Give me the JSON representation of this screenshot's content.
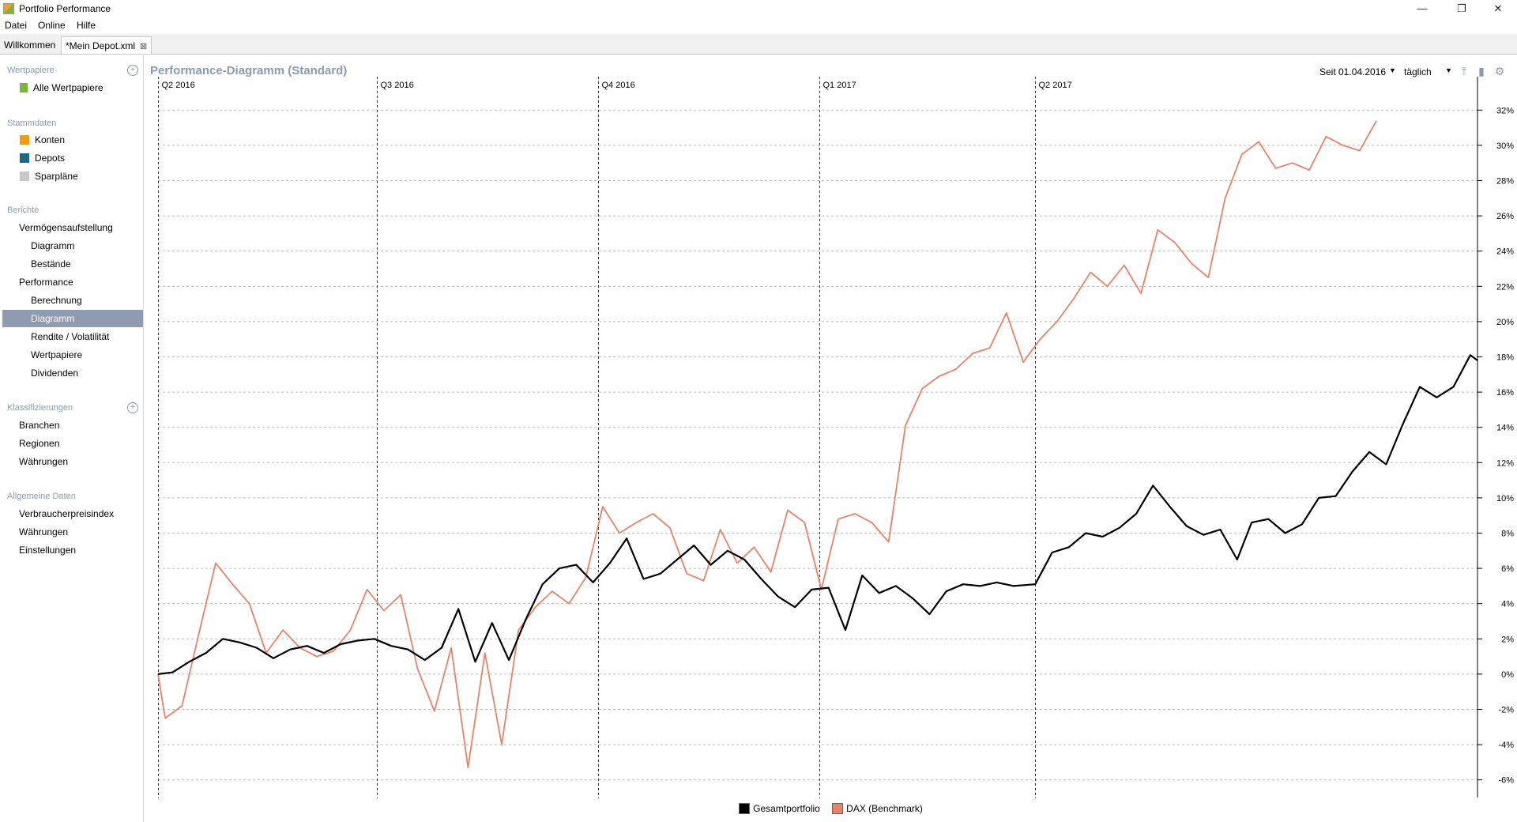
{
  "app": {
    "title": "Portfolio Performance",
    "win_min": "—",
    "win_restore": "❐",
    "win_close": "✕"
  },
  "menu": [
    "Datei",
    "Online",
    "Hilfe"
  ],
  "tabs": [
    {
      "label": "Willkommen"
    },
    {
      "label": "*Mein Depot.xml",
      "close": "⊠"
    }
  ],
  "sidebar": {
    "wertpapiere": {
      "header": "Wertpapiere",
      "items": [
        "Alle Wertpapiere"
      ]
    },
    "stammdaten": {
      "header": "Stammdaten",
      "items": [
        "Konten",
        "Depots",
        "Sparpläne"
      ],
      "colors": [
        "#f39c12",
        "#1f6a80",
        "#c8c8c8"
      ]
    },
    "berichte": {
      "header": "Berichte",
      "items": [
        "Vermögensaufstellung",
        "Diagramm",
        "Bestände",
        "Performance",
        "Berechnung",
        "Diagramm",
        "Rendite / Volatilität",
        "Wertpapiere",
        "Dividenden"
      ]
    },
    "klassifizierungen": {
      "header": "Klassifizierungen",
      "items": [
        "Branchen",
        "Regionen",
        "Währungen"
      ]
    },
    "allgemein": {
      "header": "Allgemeine Daten",
      "items": [
        "Verbraucherpreisindex",
        "Währungen",
        "Einstellungen"
      ]
    },
    "add_icon": "+"
  },
  "toolbar": {
    "title": "Performance-Diagramm (Standard)",
    "period": "Seit 01.04.2016",
    "interval": "täglich",
    "dropdown": "▼",
    "icons": [
      "export-icon",
      "bookmark-icon",
      "settings-icon"
    ]
  },
  "chart_data": {
    "type": "line",
    "quarters": [
      "Q2 2016",
      "Q3 2016",
      "Q4 2016",
      "Q1 2017",
      "Q2 2017"
    ],
    "y_ticks": [
      "32%",
      "30%",
      "28%",
      "26%",
      "24%",
      "22%",
      "20%",
      "18%",
      "16%",
      "14%",
      "12%",
      "10%",
      "8%",
      "6%",
      "4%",
      "2%",
      "0%",
      "-2%",
      "-4%",
      "-6%"
    ],
    "ylim": [
      -7,
      33
    ],
    "x_start": "2016-04-01",
    "grid": true,
    "legend_position": "bottom",
    "series": [
      {
        "name": "Gesamtportfolio",
        "color": "#000000",
        "points": [
          [
            "2016-04-01",
            0
          ],
          [
            "2016-04-07",
            0.1
          ],
          [
            "2016-04-14",
            0.7
          ],
          [
            "2016-04-21",
            1.2
          ],
          [
            "2016-04-28",
            2.0
          ],
          [
            "2016-05-05",
            1.8
          ],
          [
            "2016-05-12",
            1.5
          ],
          [
            "2016-05-19",
            0.9
          ],
          [
            "2016-05-26",
            1.4
          ],
          [
            "2016-06-02",
            1.6
          ],
          [
            "2016-06-09",
            1.2
          ],
          [
            "2016-06-16",
            1.7
          ],
          [
            "2016-06-23",
            1.9
          ],
          [
            "2016-06-30",
            2.0
          ],
          [
            "2016-07-07",
            1.6
          ],
          [
            "2016-07-14",
            1.4
          ],
          [
            "2016-07-21",
            0.8
          ],
          [
            "2016-07-28",
            1.5
          ],
          [
            "2016-08-04",
            3.7
          ],
          [
            "2016-08-11",
            0.7
          ],
          [
            "2016-08-18",
            2.9
          ],
          [
            "2016-08-25",
            0.8
          ],
          [
            "2016-09-01",
            3.1
          ],
          [
            "2016-09-08",
            5.1
          ],
          [
            "2016-09-15",
            6.0
          ],
          [
            "2016-09-22",
            6.2
          ],
          [
            "2016-09-29",
            5.2
          ],
          [
            "2016-10-06",
            6.3
          ],
          [
            "2016-10-13",
            7.7
          ],
          [
            "2016-10-20",
            5.4
          ],
          [
            "2016-10-27",
            5.7
          ],
          [
            "2016-11-03",
            6.5
          ],
          [
            "2016-11-10",
            7.3
          ],
          [
            "2016-11-17",
            6.2
          ],
          [
            "2016-11-24",
            7.0
          ],
          [
            "2016-12-01",
            6.5
          ],
          [
            "2016-12-08",
            5.4
          ],
          [
            "2016-12-15",
            4.4
          ],
          [
            "2016-12-22",
            3.8
          ],
          [
            "2016-12-29",
            4.8
          ],
          [
            "2017-01-05",
            4.9
          ],
          [
            "2017-01-12",
            2.5
          ],
          [
            "2017-01-19",
            5.6
          ],
          [
            "2017-01-26",
            4.6
          ],
          [
            "2017-02-02",
            5.0
          ],
          [
            "2017-02-09",
            4.3
          ],
          [
            "2017-02-16",
            3.4
          ],
          [
            "2017-02-23",
            4.7
          ],
          [
            "2017-03-02",
            5.1
          ],
          [
            "2017-03-09",
            5.0
          ],
          [
            "2017-03-16",
            5.2
          ],
          [
            "2017-03-23",
            5.0
          ],
          [
            "2017-04-01",
            5.1
          ],
          [
            "2017-04-08",
            6.9
          ],
          [
            "2017-04-15",
            7.2
          ],
          [
            "2017-04-22",
            8.0
          ],
          [
            "2017-04-29",
            7.8
          ],
          [
            "2017-05-06",
            8.3
          ],
          [
            "2017-05-13",
            9.1
          ],
          [
            "2017-05-20",
            10.7
          ],
          [
            "2017-05-27",
            9.5
          ],
          [
            "2017-06-03",
            8.4
          ],
          [
            "2017-06-10",
            7.9
          ],
          [
            "2017-06-17",
            8.2
          ],
          [
            "2017-06-24",
            6.5
          ],
          [
            "2017-06-30",
            8.6
          ],
          [
            "2017-07-07",
            8.8
          ],
          [
            "2017-07-14",
            8.0
          ],
          [
            "2017-07-21",
            8.5
          ],
          [
            "2017-07-28",
            10.0
          ],
          [
            "2017-08-04",
            10.1
          ],
          [
            "2017-08-11",
            11.5
          ],
          [
            "2017-08-18",
            12.6
          ],
          [
            "2017-08-25",
            11.9
          ],
          [
            "2017-09-01",
            14.2
          ],
          [
            "2017-09-08",
            16.3
          ],
          [
            "2017-09-15",
            15.7
          ],
          [
            "2017-09-22",
            16.3
          ],
          [
            "2017-09-29",
            18.1
          ],
          [
            "2017-10-02",
            17.8
          ]
        ]
      },
      {
        "name": "DAX (Benchmark)",
        "color": "#e8826a",
        "points": [
          [
            "2016-04-01",
            0
          ],
          [
            "2016-04-04",
            -2.5
          ],
          [
            "2016-04-11",
            -1.8
          ],
          [
            "2016-04-18",
            2.3
          ],
          [
            "2016-04-25",
            6.3
          ],
          [
            "2016-05-02",
            5.1
          ],
          [
            "2016-05-09",
            4.0
          ],
          [
            "2016-05-16",
            1.2
          ],
          [
            "2016-05-23",
            2.5
          ],
          [
            "2016-05-30",
            1.5
          ],
          [
            "2016-06-06",
            1.0
          ],
          [
            "2016-06-13",
            1.3
          ],
          [
            "2016-06-20",
            2.5
          ],
          [
            "2016-06-27",
            4.8
          ],
          [
            "2016-07-04",
            3.6
          ],
          [
            "2016-07-11",
            4.5
          ],
          [
            "2016-07-18",
            0.3
          ],
          [
            "2016-07-25",
            -2.1
          ],
          [
            "2016-08-01",
            1.5
          ],
          [
            "2016-08-08",
            -5.3
          ],
          [
            "2016-08-15",
            1.2
          ],
          [
            "2016-08-22",
            -4.0
          ],
          [
            "2016-08-29",
            2.5
          ],
          [
            "2016-09-05",
            3.8
          ],
          [
            "2016-09-12",
            4.7
          ],
          [
            "2016-09-19",
            4.0
          ],
          [
            "2016-09-26",
            5.5
          ],
          [
            "2016-10-03",
            9.5
          ],
          [
            "2016-10-10",
            8.0
          ],
          [
            "2016-10-17",
            8.6
          ],
          [
            "2016-10-24",
            9.1
          ],
          [
            "2016-10-31",
            8.3
          ],
          [
            "2016-11-07",
            5.7
          ],
          [
            "2016-11-14",
            5.3
          ],
          [
            "2016-11-21",
            8.2
          ],
          [
            "2016-11-28",
            6.3
          ],
          [
            "2016-12-05",
            7.2
          ],
          [
            "2016-12-12",
            5.8
          ],
          [
            "2016-12-19",
            9.3
          ],
          [
            "2016-12-26",
            8.6
          ],
          [
            "2017-01-02",
            4.8
          ],
          [
            "2017-01-09",
            8.8
          ],
          [
            "2017-01-16",
            9.1
          ],
          [
            "2017-01-23",
            8.6
          ],
          [
            "2017-01-30",
            7.5
          ],
          [
            "2017-02-06",
            14.1
          ],
          [
            "2017-02-13",
            16.2
          ],
          [
            "2017-02-20",
            16.9
          ],
          [
            "2017-02-27",
            17.3
          ],
          [
            "2017-03-06",
            18.2
          ],
          [
            "2017-03-13",
            18.5
          ],
          [
            "2017-03-20",
            20.5
          ],
          [
            "2017-03-27",
            17.7
          ],
          [
            "2017-04-03",
            19.0
          ],
          [
            "2017-04-10",
            20.0
          ],
          [
            "2017-04-17",
            21.3
          ],
          [
            "2017-04-24",
            22.8
          ],
          [
            "2017-05-01",
            22.0
          ],
          [
            "2017-05-08",
            23.2
          ],
          [
            "2017-05-15",
            21.6
          ],
          [
            "2017-05-22",
            25.2
          ],
          [
            "2017-05-29",
            24.5
          ],
          [
            "2017-06-05",
            23.3
          ],
          [
            "2017-06-12",
            22.5
          ],
          [
            "2017-06-19",
            27.0
          ],
          [
            "2017-06-26",
            29.5
          ],
          [
            "2017-07-03",
            30.2
          ],
          [
            "2017-07-10",
            28.7
          ],
          [
            "2017-07-17",
            29.0
          ],
          [
            "2017-07-24",
            28.6
          ],
          [
            "2017-07-31",
            30.5
          ],
          [
            "2017-08-07",
            30.0
          ],
          [
            "2017-08-14",
            29.7
          ],
          [
            "2017-08-21",
            31.4
          ]
        ]
      }
    ]
  },
  "legend": [
    {
      "label": "Gesamtportfolio",
      "color": "#000000"
    },
    {
      "label": "DAX (Benchmark)",
      "color": "#e8826a"
    }
  ]
}
